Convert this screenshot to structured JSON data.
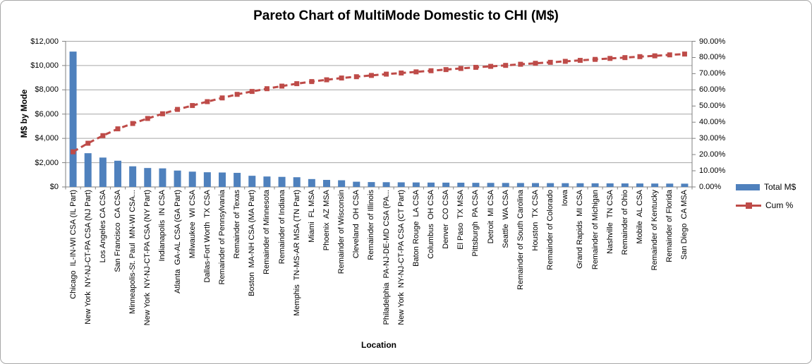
{
  "window": {
    "background": "#ffffff",
    "border_color": "#a8a8a8",
    "gridline_color": "#a6a6a6",
    "axis_line_color": "#808080"
  },
  "chart_data": {
    "type": "bar",
    "subtype": "pareto (bars + cumulative % line, dual axis)",
    "title": "Pareto Chart of MultiMode Domestic to CHI (M$)",
    "xlabel": "Location",
    "ylabel": "M$ by Mode",
    "grid": true,
    "legend_position": "right",
    "left_axis": {
      "min": 0,
      "max": 12000,
      "step": 2000,
      "tick_labels": [
        "$0",
        "$2,000",
        "$4,000",
        "$6,000",
        "$8,000",
        "$10,000",
        "$12,000"
      ]
    },
    "right_axis": {
      "min": 0,
      "max": 90,
      "step": 10,
      "tick_labels": [
        "0.00%",
        "10.00%",
        "20.00%",
        "30.00%",
        "40.00%",
        "50.00%",
        "60.00%",
        "70.00%",
        "80.00%",
        "90.00%"
      ]
    },
    "categories": [
      "Chicago  IL-IN-WI CSA (IL Part)",
      "New York  NY-NJ-CT-PA CSA (NJ Part)",
      "Los Angeles CA CSA",
      "San Francisco  CA CSA",
      "Minneapolis-St. Paul  MN-WI CSA...",
      "New York  NY-NJ-CT-PA CSA (NY Part)",
      "Indianapolis  IN CSA",
      "Atlanta  GA-AL CSA (GA Part)",
      "Milwaukee  WI CSA",
      "Dallas-Fort Worth  TX CSA",
      "Remainder of Pennsylvania",
      "Remainder of Texas",
      "Boston  MA-NH CSA (MA Part)",
      "Remainder of Minnesota",
      "Remainder of Indiana",
      "Memphis  TN-MS-AR MSA (TN Part)",
      "Miami  FL MSA",
      "Phoenix  AZ MSA",
      "Remainder of Wisconsin",
      "Cleveland  OH CSA",
      "Remainder of Illinois",
      "Philadelphia  PA-NJ-DE-MD CSA (PA...",
      "New York  NY-NJ-CT-PA CSA (CT Part)",
      "Baton Rouge  LA CSA",
      "Columbus  OH CSA",
      "Denver  CO CSA",
      "El Paso  TX MSA",
      "Pittsburgh  PA CSA",
      "Detroit  MI CSA",
      "Seattle  WA CSA",
      "Remainder of South Carolina",
      "Houston  TX CSA",
      "Remainder of Colorado",
      "Iowa",
      "Grand Rapids  MI CSA",
      "Remainder of Michigan",
      "Nashville  TN CSA",
      "Remainder of Ohio",
      "Mobile  AL CSA",
      "Remainder of Kentucky",
      "Remainder of Florida",
      "San Diego  CA MSA"
    ],
    "series": [
      {
        "name": "Total M$",
        "type": "bar",
        "color": "#4f81bd",
        "axis": "left",
        "values": [
          11150,
          2780,
          2420,
          2160,
          1700,
          1560,
          1530,
          1350,
          1260,
          1210,
          1190,
          1160,
          920,
          860,
          830,
          800,
          650,
          580,
          550,
          430,
          400,
          390,
          380,
          370,
          360,
          355,
          350,
          340,
          335,
          330,
          325,
          320,
          315,
          310,
          305,
          300,
          295,
          290,
          285,
          280,
          275,
          270
        ]
      },
      {
        "name": "Cum %",
        "type": "line",
        "color": "#be4b48",
        "marker": "square",
        "axis": "right",
        "values": [
          21.7,
          27.0,
          31.7,
          35.9,
          39.2,
          42.3,
          45.2,
          47.9,
          50.3,
          52.7,
          55.0,
          57.2,
          59.0,
          60.7,
          62.3,
          63.8,
          65.1,
          66.2,
          67.3,
          68.1,
          68.9,
          69.7,
          70.4,
          71.1,
          71.8,
          72.5,
          73.2,
          73.9,
          74.5,
          75.1,
          75.8,
          76.4,
          77.0,
          77.6,
          78.2,
          78.8,
          79.4,
          79.9,
          80.5,
          81.0,
          81.6,
          82.1
        ]
      }
    ]
  }
}
